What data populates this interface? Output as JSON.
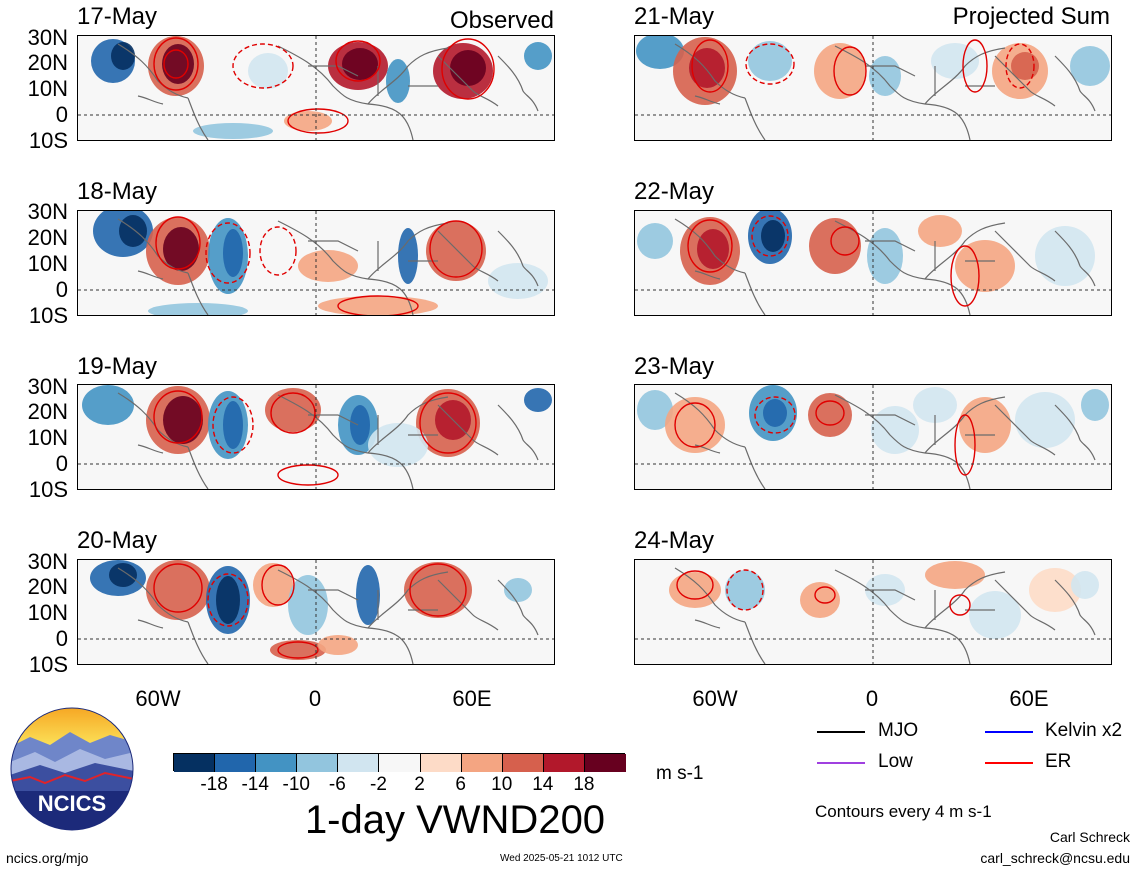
{
  "panels_left": {
    "tag": "Observed",
    "dates": [
      "17-May",
      "18-May",
      "19-May",
      "20-May"
    ]
  },
  "panels_right": {
    "tag": "Projected Sum",
    "dates": [
      "21-May",
      "22-May",
      "23-May",
      "24-May"
    ]
  },
  "lat_labels": [
    "30N",
    "20N",
    "10N",
    "0",
    "10S"
  ],
  "lon_labels": [
    "60W",
    "0",
    "60E"
  ],
  "colorbar": {
    "ticks": [
      "-18",
      "-14",
      "-10",
      "-6",
      "-2",
      "2",
      "6",
      "10",
      "14",
      "18"
    ],
    "units": "m s-1",
    "colors": [
      "#053061",
      "#2166ac",
      "#4393c3",
      "#92c5de",
      "#d1e5f0",
      "#f7f7f7",
      "#fddbc7",
      "#f4a582",
      "#d6604d",
      "#b2182b",
      "#67001f"
    ]
  },
  "title": "1-day VWND200",
  "legend": {
    "items": [
      {
        "label": "MJO",
        "color": "#000000"
      },
      {
        "label": "Kelvin x2",
        "color": "#0000ff"
      },
      {
        "label": "Low",
        "color": "#a040e0"
      },
      {
        "label": "ER",
        "color": "#ff0000"
      }
    ],
    "contour_note": "Contours every 4 m s-1"
  },
  "logo": {
    "text": "NCICS"
  },
  "footer": {
    "url": "ncics.org/mjo",
    "timestamp": "Wed 2025-05-21 1012 UTC",
    "author": "Carl Schreck",
    "email": "carl_schreck@ncsu.edu"
  }
}
